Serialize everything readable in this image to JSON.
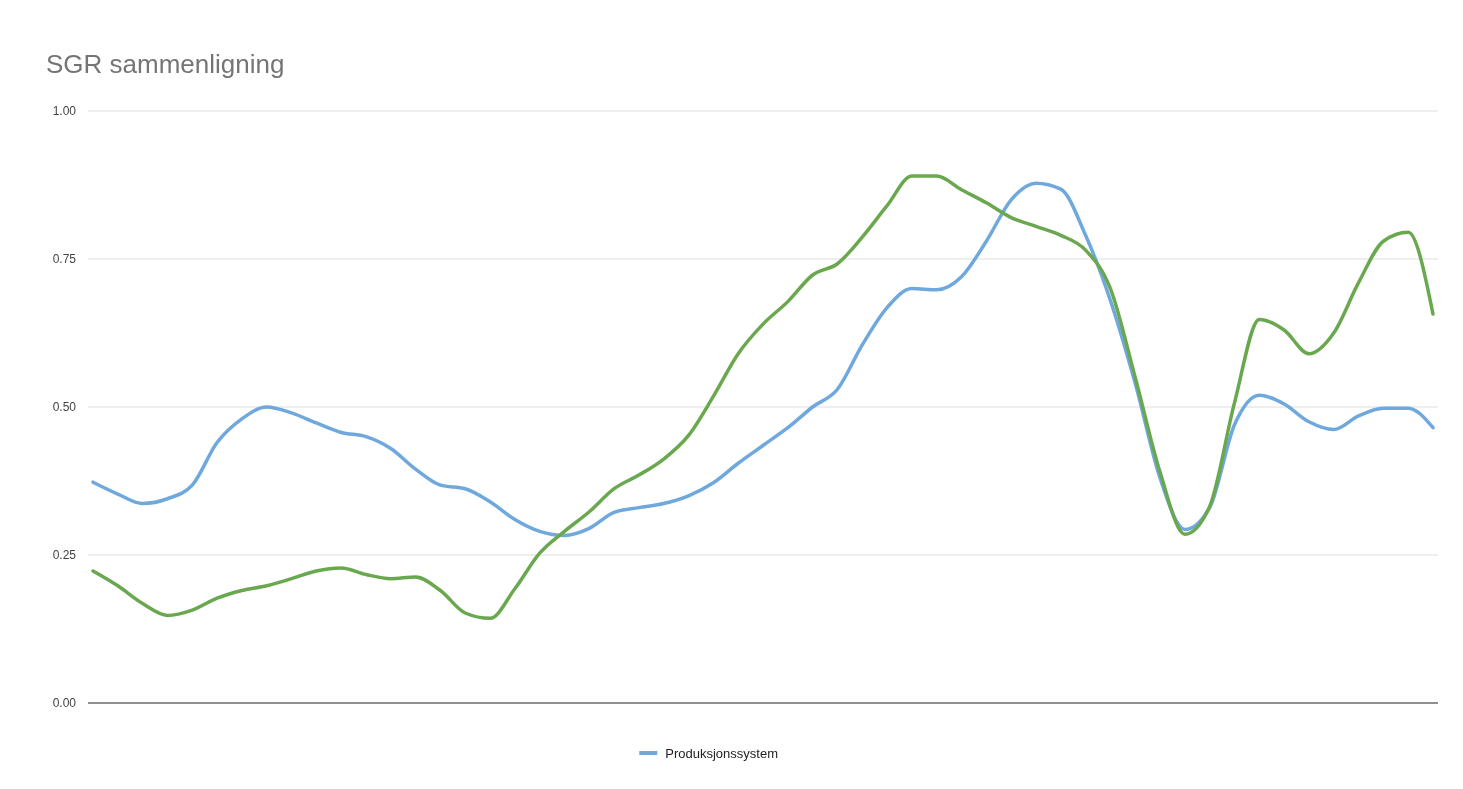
{
  "chart_data": {
    "type": "line",
    "title": "SGR sammenligning",
    "categories": [
      null,
      null,
      null,
      null,
      null,
      null,
      null,
      null,
      null,
      null,
      null,
      null,
      null,
      null,
      null,
      null,
      null,
      null,
      null,
      null,
      null,
      null,
      null,
      null,
      null,
      null,
      null,
      null,
      null,
      null,
      null,
      null,
      null,
      null,
      null,
      null,
      null,
      null,
      null,
      null,
      null,
      null,
      null,
      null,
      null,
      null,
      null,
      null,
      null,
      null,
      null,
      null,
      null,
      null,
      null
    ],
    "series": [
      {
        "name": "Produksjonssystem",
        "color": "#6fa8dc",
        "values": [
          0.373,
          0.353,
          0.337,
          0.345,
          0.368,
          0.44,
          0.48,
          0.5,
          0.49,
          0.473,
          0.457,
          0.45,
          0.43,
          0.395,
          0.368,
          0.362,
          0.34,
          0.31,
          0.29,
          0.283,
          0.295,
          0.322,
          0.33,
          0.337,
          0.35,
          0.372,
          0.405,
          0.435,
          0.465,
          0.5,
          0.53,
          0.605,
          0.668,
          0.7,
          0.698,
          0.72,
          0.78,
          0.85,
          0.878,
          0.868,
          0.79,
          0.68,
          0.54,
          0.38,
          0.293,
          0.33,
          0.47,
          0.52,
          0.505,
          0.475,
          0.462,
          0.485,
          0.498,
          0.498,
          0.465
        ]
      },
      {
        "color": "#6aa84f",
        "values": [
          0.223,
          0.198,
          0.168,
          0.148,
          0.157,
          0.177,
          0.19,
          0.198,
          0.21,
          0.223,
          0.228,
          0.217,
          0.21,
          0.213,
          0.19,
          0.152,
          0.143,
          0.193,
          0.253,
          0.29,
          0.323,
          0.362,
          0.385,
          0.412,
          0.452,
          0.518,
          0.59,
          0.64,
          0.678,
          0.723,
          0.742,
          0.787,
          0.84,
          0.89,
          0.89,
          0.867,
          0.845,
          0.82,
          0.805,
          0.79,
          0.765,
          0.7,
          0.55,
          0.39,
          0.285,
          0.332,
          0.507,
          0.648,
          0.63,
          0.59,
          0.625,
          0.71,
          0.78,
          0.795,
          0.657
        ]
      }
    ],
    "ylim": [
      0,
      1
    ],
    "yticks": [
      {
        "value": 0,
        "label": "0.00"
      },
      {
        "value": 0.25,
        "label": "0.25"
      },
      {
        "value": 0.5,
        "label": "0.50"
      },
      {
        "value": 0.75,
        "label": "0.75"
      },
      {
        "value": 1,
        "label": "1.00"
      }
    ],
    "grid": "y",
    "legend": "bottom",
    "tick_labels": "y",
    "marker": "none",
    "line_style": "solid"
  }
}
